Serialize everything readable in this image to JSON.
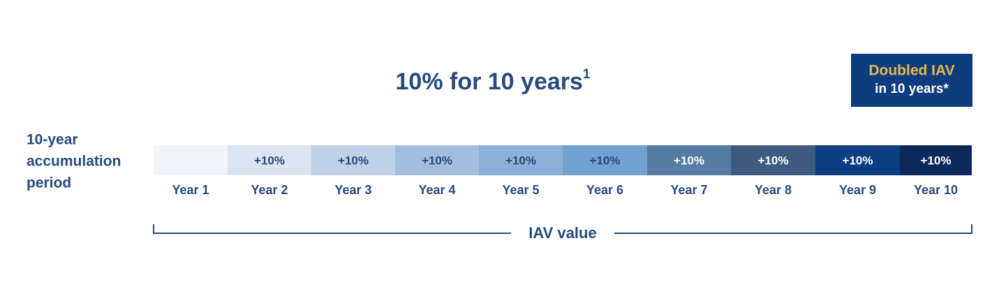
{
  "title": {
    "text": "10% for 10 years",
    "footnote": "1"
  },
  "badge": {
    "lines": [
      "Doubled IAV",
      "in 10 years*"
    ]
  },
  "period_label": {
    "lines": [
      "10-year",
      "accumulation",
      "period"
    ]
  },
  "segments": [
    {
      "year": "Year 1",
      "color": "#f1f4f9"
    },
    {
      "year": "Year 2",
      "label": "+10%",
      "color": "#dbe4f1"
    },
    {
      "year": "Year 3",
      "label": "+10%",
      "color": "#bfd0e7"
    },
    {
      "year": "Year 4",
      "label": "+10%",
      "color": "#a3bddf"
    },
    {
      "year": "Year 5",
      "label": "+10%",
      "color": "#8db0d8"
    },
    {
      "year": "Year 6",
      "label": "+10%",
      "color": "#72a2d0"
    },
    {
      "year": "Year 7",
      "label": "+10%",
      "color": "#577ca3"
    },
    {
      "year": "Year 8",
      "label": "+10%",
      "color": "#3d5c7f"
    },
    {
      "year": "Year 9",
      "label": "+10%",
      "color": "#0d3e82"
    },
    {
      "year": "Year 10",
      "label": "+10%",
      "color": "#0b2a5b"
    }
  ],
  "bracket_label": "IAV value"
}
